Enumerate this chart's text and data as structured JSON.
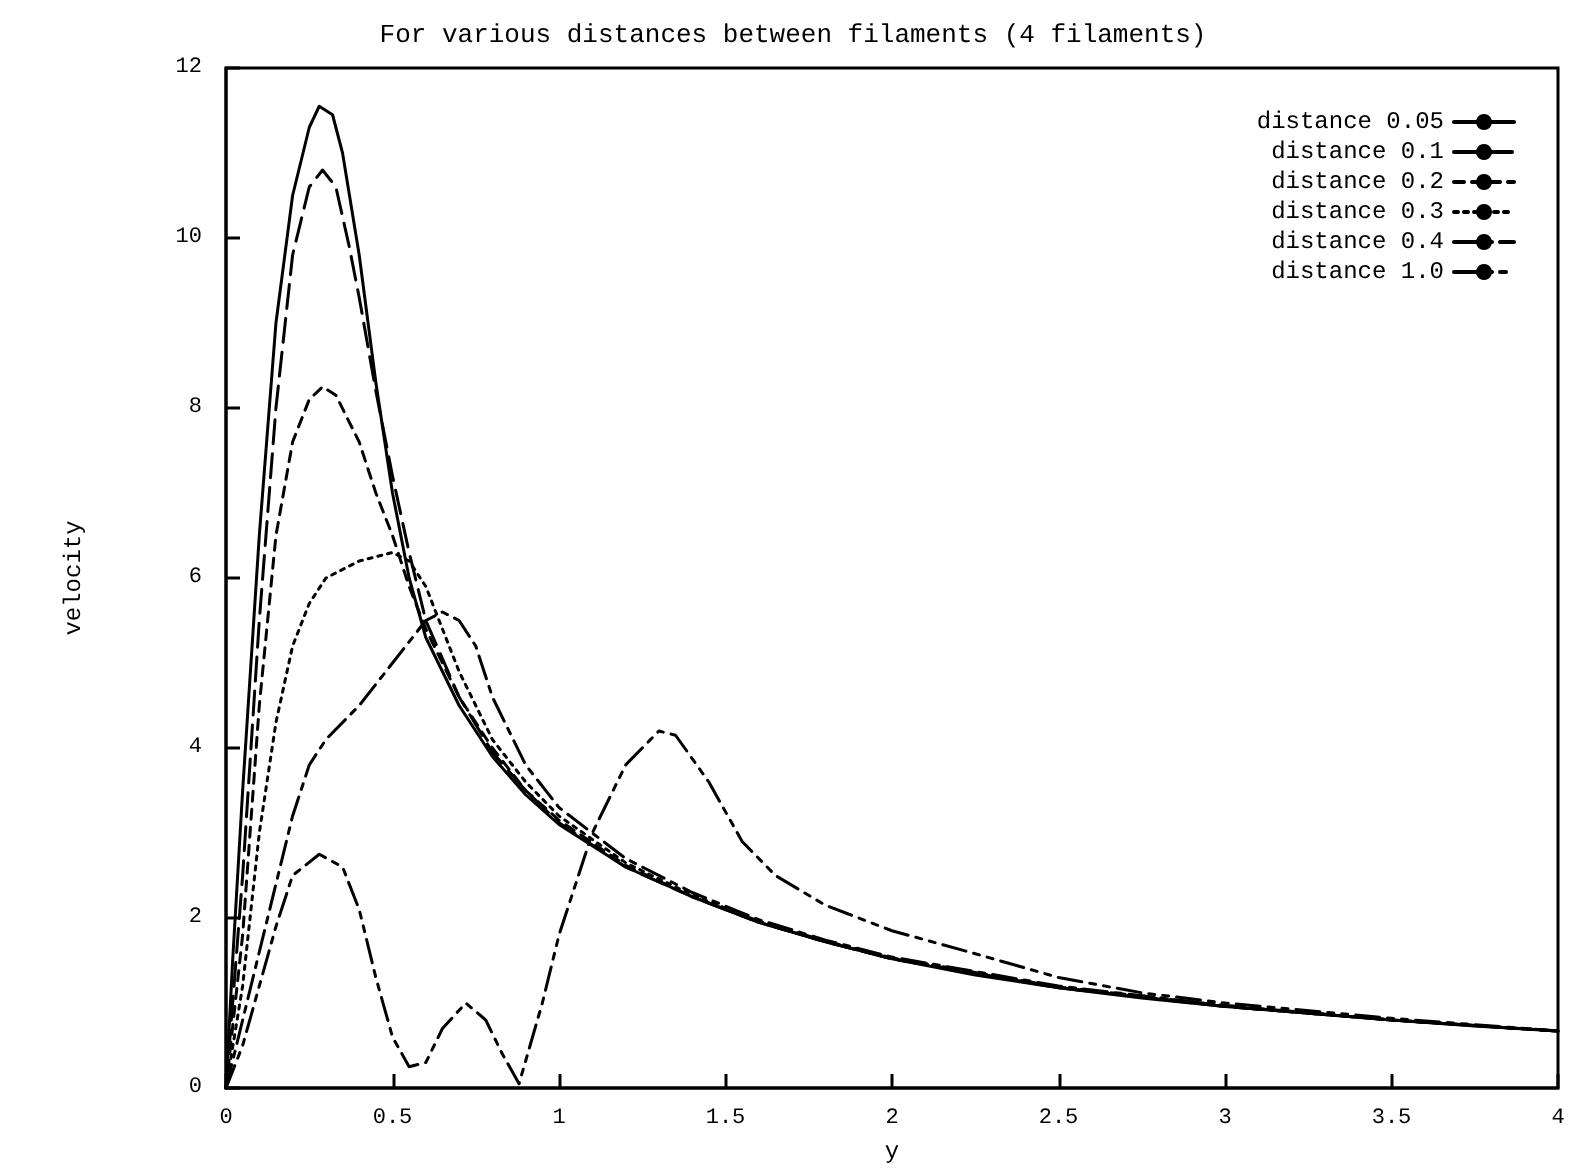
{
  "chart_data": {
    "type": "line",
    "title": "For various distances between filaments (4 filaments)",
    "xlabel": "y",
    "ylabel": "velocity",
    "xlim": [
      0,
      4
    ],
    "ylim": [
      0,
      12
    ],
    "xticks": [
      0,
      0.5,
      1,
      1.5,
      2,
      2.5,
      3,
      3.5,
      4
    ],
    "yticks": [
      0,
      2,
      4,
      6,
      8,
      10,
      12
    ],
    "grid": false,
    "legend": "top right",
    "marker": "none",
    "series": [
      {
        "name": "distance 0.05",
        "color": "#000000",
        "line_style": "solid",
        "x": [
          0,
          0.02,
          0.05,
          0.1,
          0.15,
          0.2,
          0.25,
          0.28,
          0.32,
          0.35,
          0.4,
          0.45,
          0.5,
          0.55,
          0.6,
          0.7,
          0.8,
          0.9,
          1.0,
          1.2,
          1.4,
          1.6,
          1.8,
          2.0,
          2.25,
          2.5,
          2.75,
          3.0,
          3.25,
          3.5,
          3.75,
          4.0
        ],
        "values": [
          0,
          1.5,
          3.5,
          6.5,
          9.0,
          10.5,
          11.3,
          11.55,
          11.45,
          11.0,
          9.8,
          8.3,
          7.0,
          6.0,
          5.3,
          4.5,
          3.9,
          3.45,
          3.1,
          2.6,
          2.25,
          1.95,
          1.72,
          1.52,
          1.33,
          1.18,
          1.06,
          0.96,
          0.88,
          0.8,
          0.73,
          0.67
        ]
      },
      {
        "name": "distance 0.1",
        "color": "#000000",
        "line_style": "dashed",
        "x": [
          0,
          0.05,
          0.1,
          0.15,
          0.2,
          0.25,
          0.29,
          0.33,
          0.37,
          0.4,
          0.45,
          0.5,
          0.55,
          0.6,
          0.7,
          0.8,
          0.9,
          1.0,
          1.2,
          1.4,
          1.6,
          1.8,
          2.0,
          2.5,
          3.0,
          3.5,
          4.0
        ],
        "values": [
          0,
          2.5,
          5.5,
          8.0,
          9.8,
          10.6,
          10.8,
          10.6,
          9.9,
          9.3,
          8.2,
          7.2,
          6.3,
          5.5,
          4.6,
          3.95,
          3.5,
          3.12,
          2.6,
          2.25,
          1.95,
          1.72,
          1.52,
          1.18,
          0.96,
          0.8,
          0.67
        ]
      },
      {
        "name": "distance 0.2",
        "color": "#000000",
        "line_style": "dashed",
        "x": [
          0,
          0.05,
          0.1,
          0.15,
          0.2,
          0.25,
          0.29,
          0.33,
          0.4,
          0.45,
          0.5,
          0.55,
          0.6,
          0.65,
          0.7,
          0.8,
          0.9,
          1.0,
          1.2,
          1.4,
          1.6,
          1.8,
          2.0,
          2.5,
          3.0,
          3.5,
          4.0
        ],
        "values": [
          0,
          1.8,
          4.5,
          6.5,
          7.6,
          8.1,
          8.25,
          8.15,
          7.6,
          7.0,
          6.5,
          5.9,
          5.4,
          5.0,
          4.6,
          4.0,
          3.5,
          3.15,
          2.62,
          2.25,
          1.95,
          1.72,
          1.52,
          1.18,
          0.96,
          0.8,
          0.67
        ]
      },
      {
        "name": "distance 0.3",
        "color": "#000000",
        "line_style": "dotted",
        "x": [
          0,
          0.05,
          0.1,
          0.15,
          0.2,
          0.25,
          0.3,
          0.4,
          0.5,
          0.55,
          0.6,
          0.65,
          0.7,
          0.8,
          0.9,
          1.0,
          1.2,
          1.4,
          1.6,
          1.8,
          2.0,
          2.5,
          3.0,
          3.5,
          4.0
        ],
        "values": [
          0,
          1.2,
          3.0,
          4.3,
          5.2,
          5.7,
          6.0,
          6.2,
          6.3,
          6.2,
          5.9,
          5.4,
          4.9,
          4.1,
          3.6,
          3.2,
          2.65,
          2.27,
          1.96,
          1.73,
          1.53,
          1.19,
          0.97,
          0.8,
          0.67
        ]
      },
      {
        "name": "distance 0.4",
        "color": "#000000",
        "line_style": "dashed",
        "x": [
          0,
          0.05,
          0.1,
          0.15,
          0.2,
          0.25,
          0.3,
          0.4,
          0.5,
          0.6,
          0.65,
          0.7,
          0.75,
          0.8,
          0.9,
          1.0,
          1.2,
          1.4,
          1.6,
          1.8,
          2.0,
          2.5,
          3.0,
          3.5,
          4.0
        ],
        "values": [
          0,
          0.8,
          1.6,
          2.4,
          3.2,
          3.8,
          4.1,
          4.5,
          5.0,
          5.5,
          5.6,
          5.5,
          5.2,
          4.6,
          3.8,
          3.3,
          2.7,
          2.3,
          1.98,
          1.74,
          1.54,
          1.2,
          0.97,
          0.8,
          0.67
        ]
      },
      {
        "name": "distance 1.0",
        "color": "#000000",
        "line_style": "dashed",
        "x": [
          0,
          0.05,
          0.1,
          0.15,
          0.2,
          0.28,
          0.35,
          0.4,
          0.45,
          0.5,
          0.55,
          0.6,
          0.65,
          0.72,
          0.78,
          0.83,
          0.88,
          0.95,
          1.0,
          1.1,
          1.2,
          1.3,
          1.35,
          1.45,
          1.55,
          1.65,
          1.8,
          2.0,
          2.25,
          2.5,
          2.75,
          3.0,
          3.5,
          4.0
        ],
        "values": [
          0,
          0.5,
          1.2,
          1.9,
          2.5,
          2.75,
          2.6,
          2.1,
          1.3,
          0.6,
          0.25,
          0.3,
          0.7,
          1.0,
          0.8,
          0.4,
          0.05,
          1.0,
          1.8,
          3.0,
          3.8,
          4.2,
          4.15,
          3.6,
          2.9,
          2.5,
          2.15,
          1.85,
          1.58,
          1.3,
          1.12,
          1.0,
          0.82,
          0.67
        ]
      }
    ]
  }
}
